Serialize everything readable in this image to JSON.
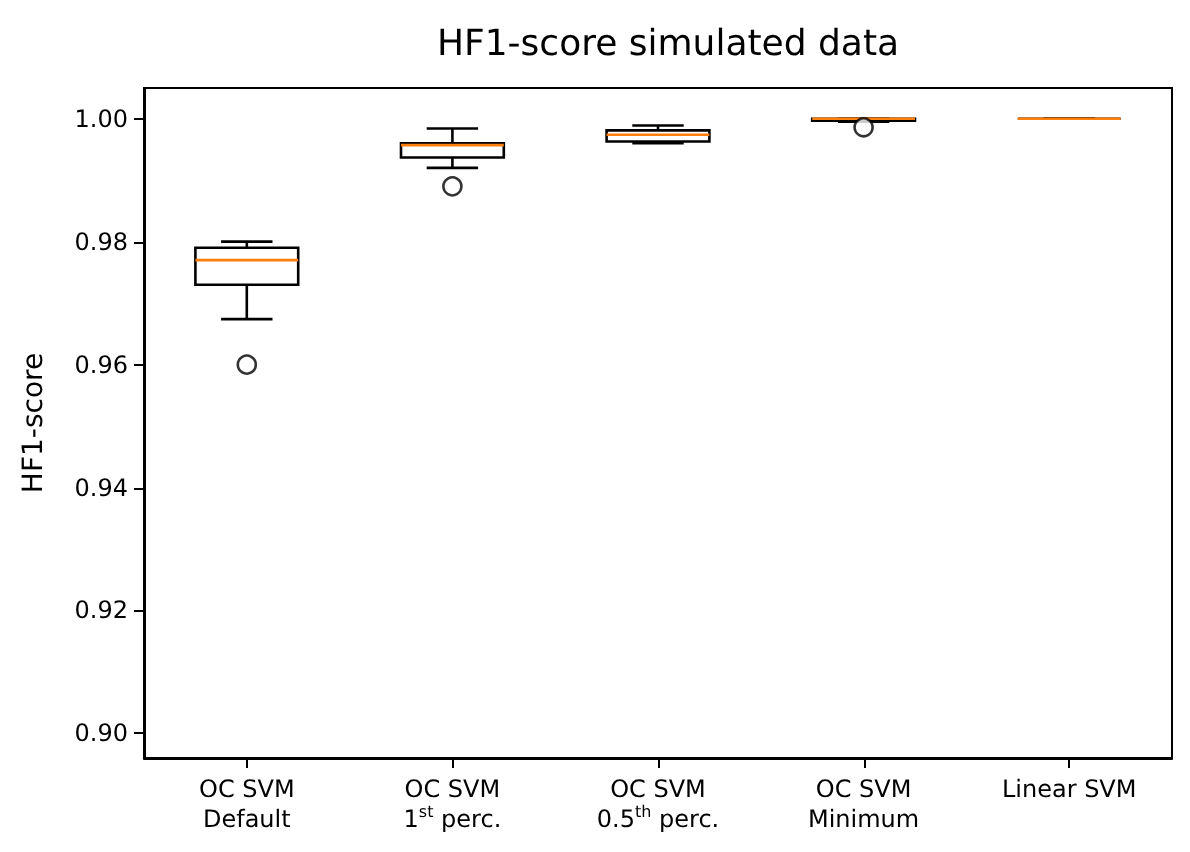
{
  "chart_data": {
    "type": "box",
    "title": "HF1-score simulated data",
    "ylabel": "HF1-score",
    "categories": [
      "OC SVM\nDefault",
      "OC SVM\n1$^{st}$ perc.",
      "OC SVM\n0.5$^{th}$ perc.",
      "OC SVM\nMinimum",
      "Linear SVM"
    ],
    "series": [
      {
        "color": "#000000",
        "boxes": [
          {
            "low": 0.9674,
            "q1": 0.973,
            "median": 0.977,
            "q3": 0.979,
            "high": 0.98,
            "outliers": [
              0.96
            ]
          },
          {
            "low": 0.992,
            "q1": 0.9937,
            "median": 0.9957,
            "q3": 0.996,
            "high": 0.9984,
            "outliers": [
              0.989
            ]
          },
          {
            "low": 0.996,
            "q1": 0.9963,
            "median": 0.9974,
            "q3": 0.9981,
            "high": 0.9989
          },
          {
            "low": 0.9995,
            "q1": 0.9997,
            "median": 1.0,
            "q3": 1.0,
            "high": 1.0,
            "outliers": [
              0.9986
            ]
          },
          {
            "low": 1.0,
            "q1": 1.0,
            "median": 1.0,
            "q3": 1.0,
            "high": 1.0
          }
        ]
      }
    ],
    "ylim": [
      0.896,
      1.005
    ],
    "yticks": [
      {
        "value": 0.9,
        "label": "0.90"
      },
      {
        "value": 0.92,
        "label": "0.92"
      },
      {
        "value": 0.94,
        "label": "0.94"
      },
      {
        "value": 0.96,
        "label": "0.96"
      },
      {
        "value": 0.98,
        "label": "0.98"
      },
      {
        "value": 1.0,
        "label": "1.00"
      }
    ],
    "grid": false
  }
}
